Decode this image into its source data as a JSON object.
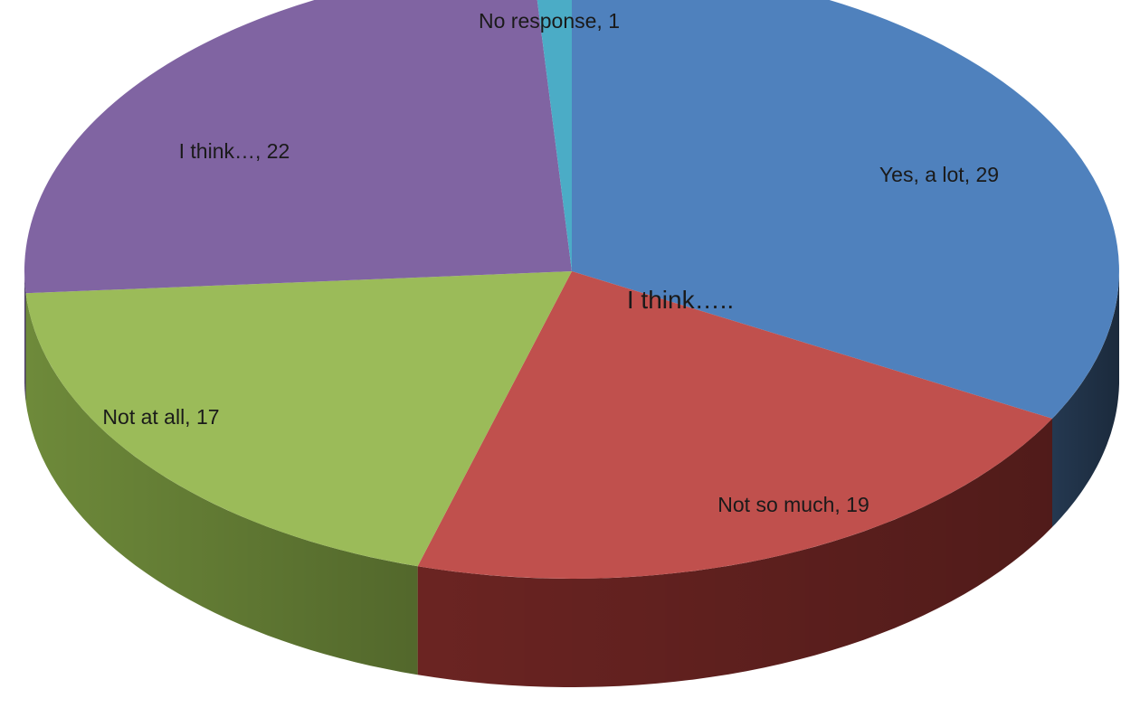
{
  "chart_data": {
    "type": "pie",
    "title": "I think…..",
    "slices": [
      {
        "label": "Yes, a lot",
        "value": 29,
        "color": "#4F81BD",
        "side_color": "#243850",
        "display": "Yes, a lot, 29"
      },
      {
        "label": "Not so much",
        "value": 19,
        "color": "#C0504D",
        "side_color": "#6B2422",
        "display": "Not so much, 19"
      },
      {
        "label": "Not at all",
        "value": 17,
        "color": "#9BBB59",
        "side_color": "#6E8A3A",
        "display": "Not at all, 17"
      },
      {
        "label": "I think…",
        "value": 22,
        "color": "#8064A2",
        "side_color": "#5A467A",
        "display": "I think…, 22"
      },
      {
        "label": "No response",
        "value": 1,
        "color": "#4BACC6",
        "side_color": "#2E7A8E",
        "display": "No response, 1"
      }
    ],
    "legend": "none",
    "data_labels": "category-and-value"
  }
}
